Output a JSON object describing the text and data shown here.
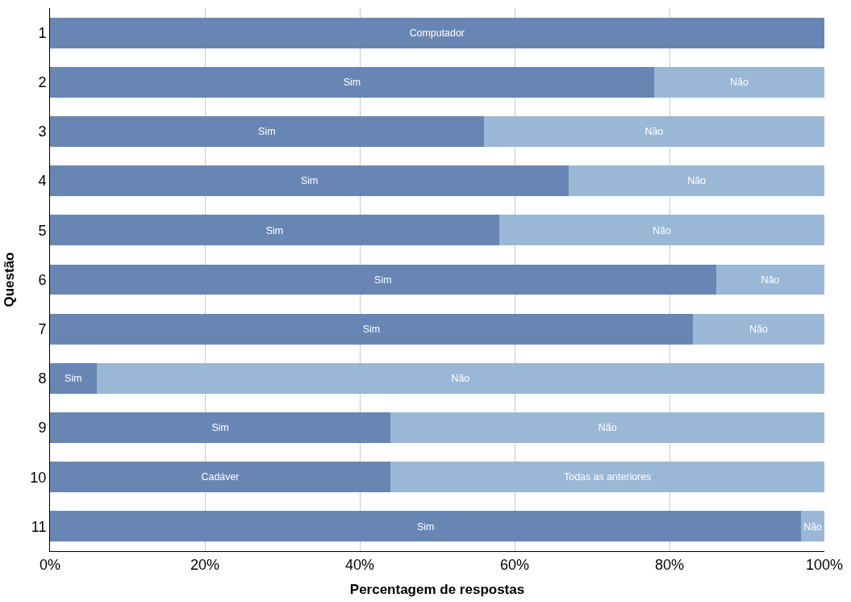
{
  "chart_data": {
    "type": "bar",
    "orientation": "horizontal",
    "stacked": true,
    "xlabel": "Percentagem de respostas",
    "ylabel": "Questão",
    "categories": [
      "1",
      "2",
      "3",
      "4",
      "5",
      "6",
      "7",
      "8",
      "9",
      "10",
      "11"
    ],
    "series": [
      {
        "color": "#6886b4",
        "values": [
          100,
          78,
          56,
          67,
          58,
          86,
          83,
          6,
          44,
          44,
          97
        ],
        "value_labels": [
          "Computador",
          "Sim",
          "Sim",
          "Sim",
          "Sim",
          "Sim",
          "Sim",
          "Sim",
          "Sim",
          "Cadáver",
          "Sim"
        ]
      },
      {
        "color": "#9bb7d6",
        "values": [
          null,
          22,
          44,
          33,
          42,
          14,
          17,
          94,
          56,
          56,
          3
        ],
        "value_labels": [
          null,
          "Não",
          "Não",
          "Não",
          "Não",
          "Não",
          "Não",
          "Não",
          "Não",
          "Todas as anteriores",
          "Não"
        ]
      }
    ],
    "xlim": [
      0,
      100
    ],
    "xticks": [
      {
        "value": 0,
        "label": "0%"
      },
      {
        "value": 20,
        "label": "20%"
      },
      {
        "value": 40,
        "label": "40%"
      },
      {
        "value": 60,
        "label": "60%"
      },
      {
        "value": 80,
        "label": "80%"
      },
      {
        "value": 100,
        "label": "100%"
      }
    ],
    "grid": "x"
  }
}
